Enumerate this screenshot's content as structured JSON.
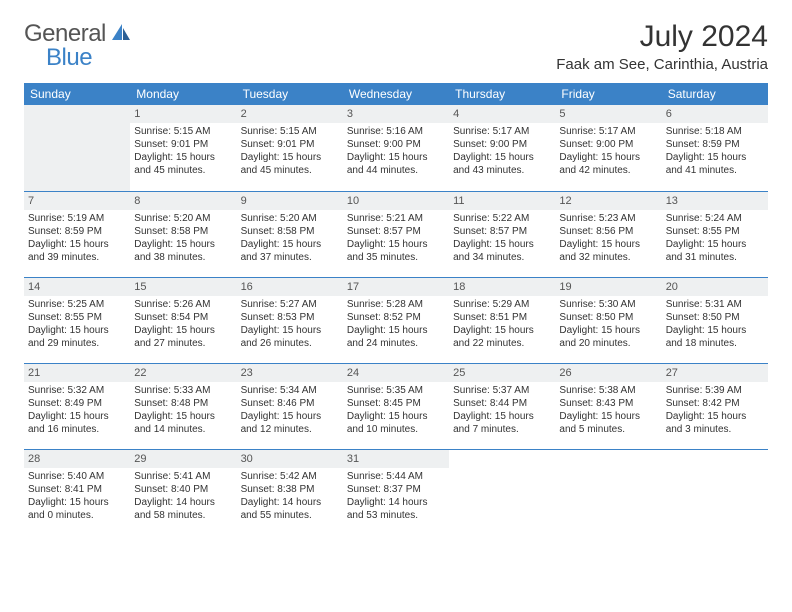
{
  "logo": {
    "text1": "General",
    "text2": "Blue"
  },
  "title": "July 2024",
  "location": "Faak am See, Carinthia, Austria",
  "colors": {
    "accent": "#3b82c7",
    "daynum_bg": "#eef0f1"
  },
  "weekdays": [
    "Sunday",
    "Monday",
    "Tuesday",
    "Wednesday",
    "Thursday",
    "Friday",
    "Saturday"
  ],
  "weeks": [
    [
      null,
      {
        "n": "1",
        "sr": "Sunrise: 5:15 AM",
        "ss": "Sunset: 9:01 PM",
        "d1": "Daylight: 15 hours",
        "d2": "and 45 minutes."
      },
      {
        "n": "2",
        "sr": "Sunrise: 5:15 AM",
        "ss": "Sunset: 9:01 PM",
        "d1": "Daylight: 15 hours",
        "d2": "and 45 minutes."
      },
      {
        "n": "3",
        "sr": "Sunrise: 5:16 AM",
        "ss": "Sunset: 9:00 PM",
        "d1": "Daylight: 15 hours",
        "d2": "and 44 minutes."
      },
      {
        "n": "4",
        "sr": "Sunrise: 5:17 AM",
        "ss": "Sunset: 9:00 PM",
        "d1": "Daylight: 15 hours",
        "d2": "and 43 minutes."
      },
      {
        "n": "5",
        "sr": "Sunrise: 5:17 AM",
        "ss": "Sunset: 9:00 PM",
        "d1": "Daylight: 15 hours",
        "d2": "and 42 minutes."
      },
      {
        "n": "6",
        "sr": "Sunrise: 5:18 AM",
        "ss": "Sunset: 8:59 PM",
        "d1": "Daylight: 15 hours",
        "d2": "and 41 minutes."
      }
    ],
    [
      {
        "n": "7",
        "sr": "Sunrise: 5:19 AM",
        "ss": "Sunset: 8:59 PM",
        "d1": "Daylight: 15 hours",
        "d2": "and 39 minutes."
      },
      {
        "n": "8",
        "sr": "Sunrise: 5:20 AM",
        "ss": "Sunset: 8:58 PM",
        "d1": "Daylight: 15 hours",
        "d2": "and 38 minutes."
      },
      {
        "n": "9",
        "sr": "Sunrise: 5:20 AM",
        "ss": "Sunset: 8:58 PM",
        "d1": "Daylight: 15 hours",
        "d2": "and 37 minutes."
      },
      {
        "n": "10",
        "sr": "Sunrise: 5:21 AM",
        "ss": "Sunset: 8:57 PM",
        "d1": "Daylight: 15 hours",
        "d2": "and 35 minutes."
      },
      {
        "n": "11",
        "sr": "Sunrise: 5:22 AM",
        "ss": "Sunset: 8:57 PM",
        "d1": "Daylight: 15 hours",
        "d2": "and 34 minutes."
      },
      {
        "n": "12",
        "sr": "Sunrise: 5:23 AM",
        "ss": "Sunset: 8:56 PM",
        "d1": "Daylight: 15 hours",
        "d2": "and 32 minutes."
      },
      {
        "n": "13",
        "sr": "Sunrise: 5:24 AM",
        "ss": "Sunset: 8:55 PM",
        "d1": "Daylight: 15 hours",
        "d2": "and 31 minutes."
      }
    ],
    [
      {
        "n": "14",
        "sr": "Sunrise: 5:25 AM",
        "ss": "Sunset: 8:55 PM",
        "d1": "Daylight: 15 hours",
        "d2": "and 29 minutes."
      },
      {
        "n": "15",
        "sr": "Sunrise: 5:26 AM",
        "ss": "Sunset: 8:54 PM",
        "d1": "Daylight: 15 hours",
        "d2": "and 27 minutes."
      },
      {
        "n": "16",
        "sr": "Sunrise: 5:27 AM",
        "ss": "Sunset: 8:53 PM",
        "d1": "Daylight: 15 hours",
        "d2": "and 26 minutes."
      },
      {
        "n": "17",
        "sr": "Sunrise: 5:28 AM",
        "ss": "Sunset: 8:52 PM",
        "d1": "Daylight: 15 hours",
        "d2": "and 24 minutes."
      },
      {
        "n": "18",
        "sr": "Sunrise: 5:29 AM",
        "ss": "Sunset: 8:51 PM",
        "d1": "Daylight: 15 hours",
        "d2": "and 22 minutes."
      },
      {
        "n": "19",
        "sr": "Sunrise: 5:30 AM",
        "ss": "Sunset: 8:50 PM",
        "d1": "Daylight: 15 hours",
        "d2": "and 20 minutes."
      },
      {
        "n": "20",
        "sr": "Sunrise: 5:31 AM",
        "ss": "Sunset: 8:50 PM",
        "d1": "Daylight: 15 hours",
        "d2": "and 18 minutes."
      }
    ],
    [
      {
        "n": "21",
        "sr": "Sunrise: 5:32 AM",
        "ss": "Sunset: 8:49 PM",
        "d1": "Daylight: 15 hours",
        "d2": "and 16 minutes."
      },
      {
        "n": "22",
        "sr": "Sunrise: 5:33 AM",
        "ss": "Sunset: 8:48 PM",
        "d1": "Daylight: 15 hours",
        "d2": "and 14 minutes."
      },
      {
        "n": "23",
        "sr": "Sunrise: 5:34 AM",
        "ss": "Sunset: 8:46 PM",
        "d1": "Daylight: 15 hours",
        "d2": "and 12 minutes."
      },
      {
        "n": "24",
        "sr": "Sunrise: 5:35 AM",
        "ss": "Sunset: 8:45 PM",
        "d1": "Daylight: 15 hours",
        "d2": "and 10 minutes."
      },
      {
        "n": "25",
        "sr": "Sunrise: 5:37 AM",
        "ss": "Sunset: 8:44 PM",
        "d1": "Daylight: 15 hours",
        "d2": "and 7 minutes."
      },
      {
        "n": "26",
        "sr": "Sunrise: 5:38 AM",
        "ss": "Sunset: 8:43 PM",
        "d1": "Daylight: 15 hours",
        "d2": "and 5 minutes."
      },
      {
        "n": "27",
        "sr": "Sunrise: 5:39 AM",
        "ss": "Sunset: 8:42 PM",
        "d1": "Daylight: 15 hours",
        "d2": "and 3 minutes."
      }
    ],
    [
      {
        "n": "28",
        "sr": "Sunrise: 5:40 AM",
        "ss": "Sunset: 8:41 PM",
        "d1": "Daylight: 15 hours",
        "d2": "and 0 minutes."
      },
      {
        "n": "29",
        "sr": "Sunrise: 5:41 AM",
        "ss": "Sunset: 8:40 PM",
        "d1": "Daylight: 14 hours",
        "d2": "and 58 minutes."
      },
      {
        "n": "30",
        "sr": "Sunrise: 5:42 AM",
        "ss": "Sunset: 8:38 PM",
        "d1": "Daylight: 14 hours",
        "d2": "and 55 minutes."
      },
      {
        "n": "31",
        "sr": "Sunrise: 5:44 AM",
        "ss": "Sunset: 8:37 PM",
        "d1": "Daylight: 14 hours",
        "d2": "and 53 minutes."
      },
      null,
      null,
      null
    ]
  ]
}
